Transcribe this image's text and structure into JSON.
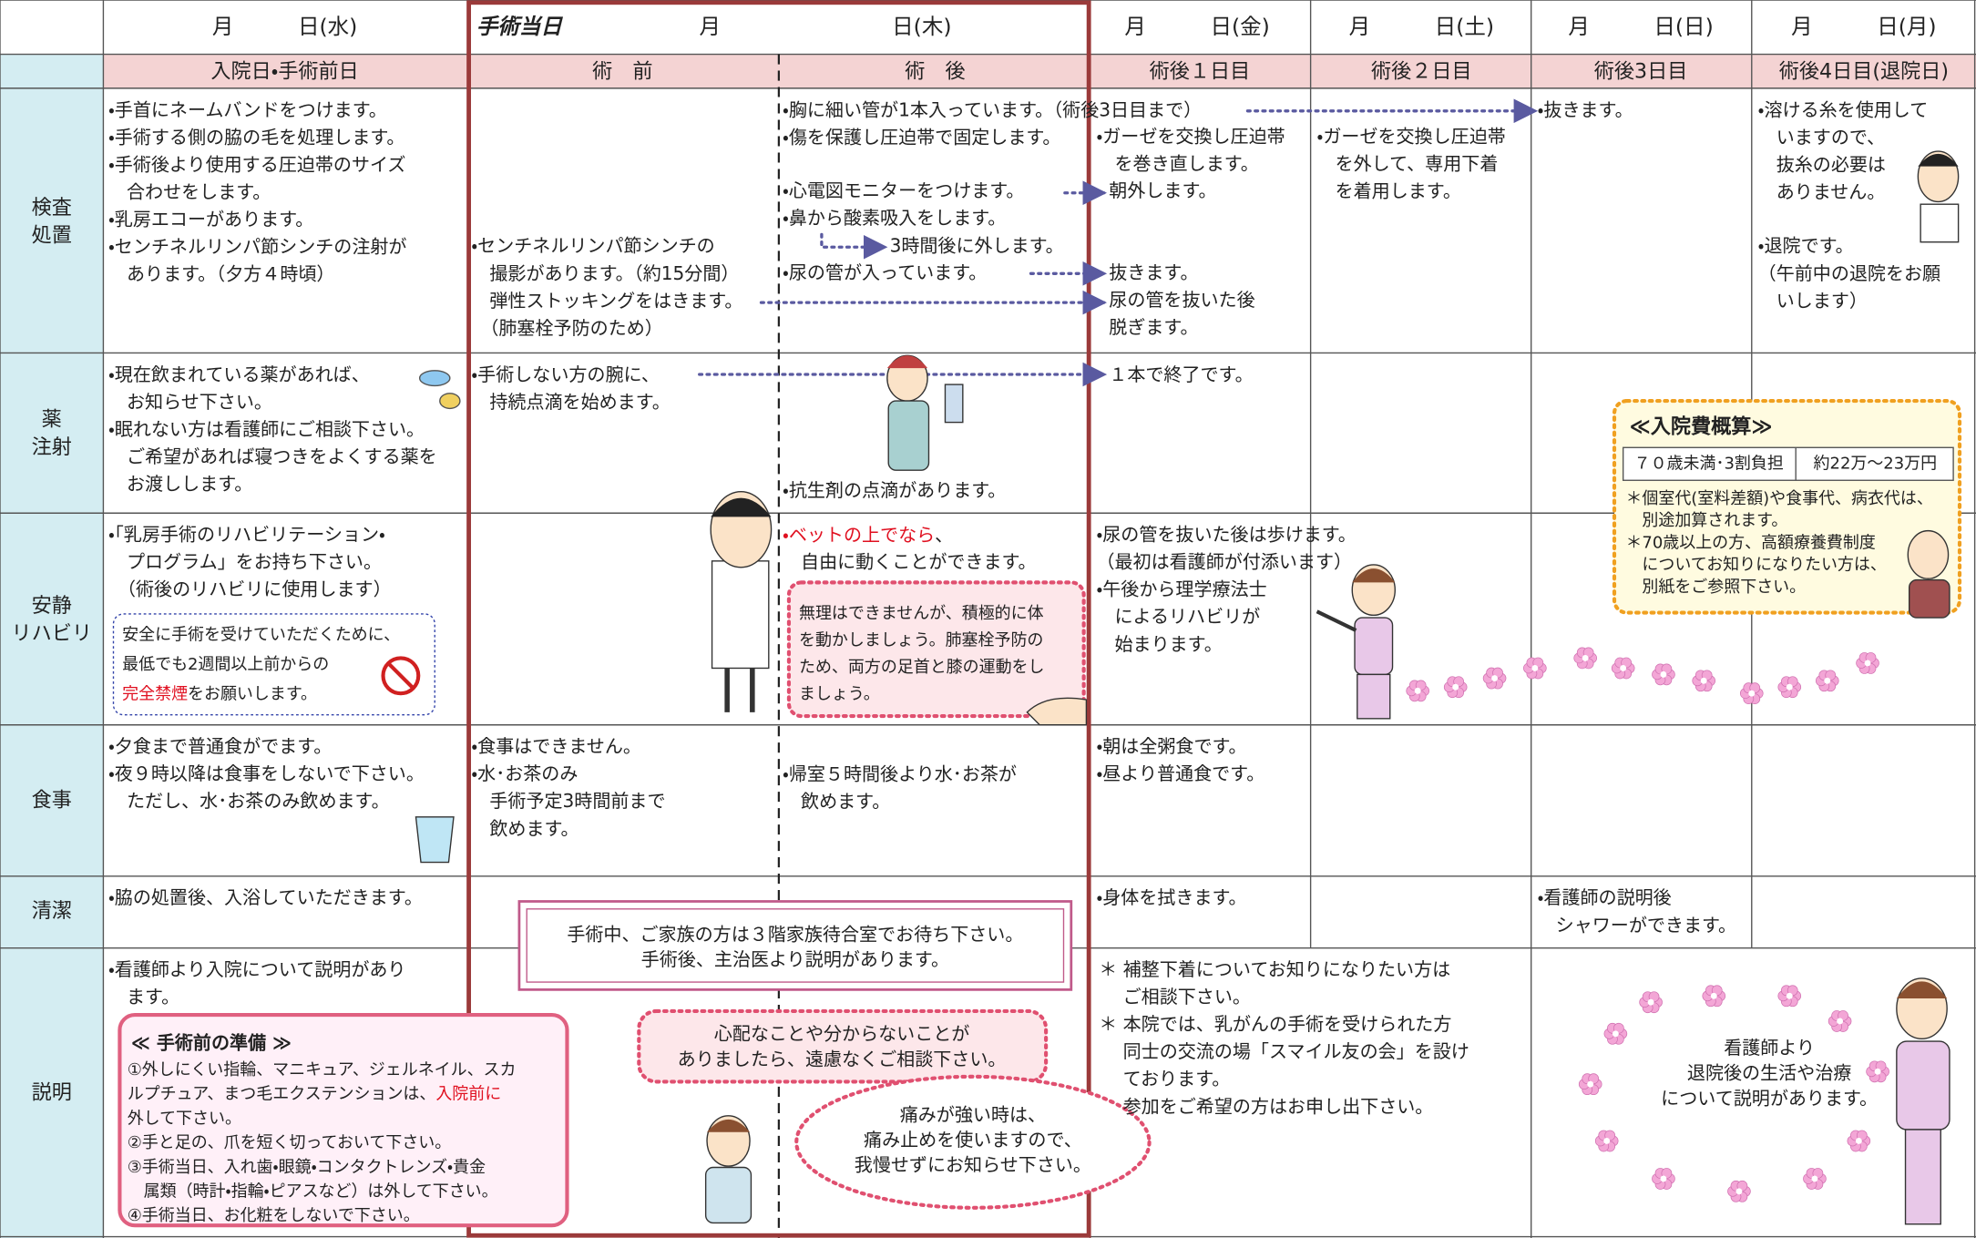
{
  "header": {
    "days": [
      "月　　　日(水)",
      "月　　　日(金)",
      "月　　　日(土)",
      "月　　　日(日)",
      "月　　　日(月)"
    ],
    "surgery_label": "手術当日",
    "surgery_date": "月　　　　　　　　日(木)"
  },
  "subheaders": [
    "入院日・手術前日",
    "術　前",
    "術　後",
    "術後１日目",
    "術後２日目",
    "術後3日目",
    "術後4日目(退院日)"
  ],
  "row_labels": [
    [
      "検査",
      "処置"
    ],
    [
      "薬",
      "注射"
    ],
    [
      "安静",
      "リハビリ"
    ],
    [
      "食事"
    ],
    [
      "清潔"
    ],
    [
      "説明"
    ]
  ],
  "cells": [
    [
      "・手首にネームバンドをつけます。",
      "・手術する側の脇の毛を処理します。",
      "・手術後より使用する圧迫帯のサイズ",
      "　合わせをします。",
      "・乳房エコーがあります。",
      "・センチネルリンパ節シンチの注射が",
      "　あります。（夕方４時頃）"
    ],
    [
      "・センチネルリンパ節シンチの",
      "　撮影があります。（約15分間）",
      "　弾性ストッキングをはきます。",
      "　（肺塞栓予防のため）"
    ],
    [
      "・胸に細い管が1本入っています。（術後3日目まで）",
      "・傷を保護し圧迫帯で固定します。"
    ],
    [
      "・心電図モニターをつけます。",
      "・鼻から酸素吸入をします。"
    ],
    [
      "3時間後に外します。"
    ],
    [
      "・尿の管が入っています。"
    ],
    [
      "・ガーゼを交換し圧迫帯",
      "　を巻き直します。"
    ],
    [
      "朝外します。"
    ],
    [
      "抜きます。",
      "尿の管を抜いた後",
      "脱ぎます。"
    ],
    [
      "・ガーゼを交換し圧迫帯",
      "　を外して、専用下着",
      "　を着用します。"
    ],
    [
      "・抜きます。"
    ],
    [
      "・溶ける糸を使用して",
      "　いますので、",
      "　抜糸の必要は",
      "　ありません。"
    ],
    [
      "・退院です。",
      "（午前中の退院をお願",
      "　いします）"
    ],
    [
      "・現在飲まれている薬があれば、",
      "　お知らせ下さい。",
      "・眠れない方は看護師にご相談下さい。",
      "　ご希望があれば寝つきをよくする薬を",
      "　お渡しします。"
    ],
    [
      "・手術しない方の腕に、",
      "　持続点滴を始めます。"
    ],
    [
      "・抗生剤の点滴があります。"
    ],
    [
      "１本で終了です。"
    ],
    [
      "・「乳房手術のリハビリテーション・",
      "　プログラム」をお持ち下さい。",
      "　（術後のリハビリに使用します）"
    ],
    [
      [
        {
          "text": "・ベットの上でなら",
          "red": true
        },
        "、"
      ],
      "　自由に動くことができます。"
    ],
    [
      "・尿の管を抜いた後は歩けます。",
      "（最初は看護師が付添います）",
      "・午後から理学療法士",
      "　によるリハビリが",
      "　始まります。"
    ],
    [
      "・夕食まで普通食がでます。",
      {
        "text": "・夜９時以降は食事をしないで下さい。",
        "red": true
      },
      "　ただし、水･お茶のみ飲めます。"
    ],
    [
      "・食事はできません。",
      "・水･お茶のみ",
      "　手術予定3時間前まで",
      "　飲めます。"
    ],
    [
      "・帰室５時間後より水･お茶が",
      "　飲めます。"
    ],
    [
      "・朝は全粥食です。",
      "・昼より普通食です。"
    ],
    [
      "・脇の処置後、入浴していただきます。"
    ],
    [
      "・身体を拭きます。"
    ],
    [
      "・看護師の説明後",
      "　シャワーができます。"
    ],
    [
      "・看護師より入院について説明があり",
      "　ます。"
    ],
    [
      "＊ 補整下着についてお知りになりたい方は",
      "　 ご相談下さい。",
      "＊ 本院では、乳がんの手術を受けられた方",
      "　 同士の交流の場「スマイル友の会」を設け",
      "　 ております。",
      "　 参加をご希望の方はお申し出下さい。"
    ]
  ],
  "smoking_box": [
    "安全に手術を受けていただくために、",
    "最低でも2週間以上前からの",
    [
      {
        "text": "完全禁煙",
        "red": true
      },
      "をお願いします。"
    ]
  ],
  "exercise_box": [
    "無理はできませんが、積極的に体",
    "を動かしましょう。肺塞栓予防の",
    "ため、両方の足首と膝の運動をし",
    "ましょう。"
  ],
  "fee_box": {
    "title": "≪入院費概算≫",
    "table": [
      "７０歳未満･3割負担",
      "約22万～23万円"
    ],
    "notes": [
      "＊個室代(室料差額)や食事代、病衣代は、",
      "　別途加算されます。",
      "＊70歳以上の方、高額療養費制度",
      "　についてお知りになりたい方は、",
      "　別紙をご参照下さい。"
    ]
  },
  "family_box": [
    "手術中、ご家族の方は３階家族待合室でお待ち下さい。",
    "手術後、主治医より説明があります。"
  ],
  "preparation_box": {
    "title": "≪ 手術前の準備 ≫",
    "lines": [
      "①外しにくい指輪、マニキュア、ジェルネイル、スカ",
      [
        "ルプチュア、まつ毛エクステンションは、",
        {
          "text": "入院前に",
          "red": true
        }
      ],
      {
        "text": "外して下さい。",
        "red": true
      },
      "②手と足の、爪を短く切っておいて下さい。",
      "③手術当日、入れ歯・眼鏡・コンタクトレンズ・貴金",
      "　属類（時計・指輪・ピアスなど）は外して下さい。",
      "④手術当日、お化粧をしないで下さい。"
    ]
  },
  "consult_bubble": [
    "心配なことや分からないことが",
    "ありましたら、遠慮なくご相談下さい。"
  ],
  "pain_bubble": [
    "痛みが強い時は、",
    "痛み止めを使いますので、",
    "我慢せずにお知らせ下さい。"
  ],
  "discharge_note": [
    "看護師より",
    "退院後の生活や治療",
    "について説明があります。"
  ]
}
